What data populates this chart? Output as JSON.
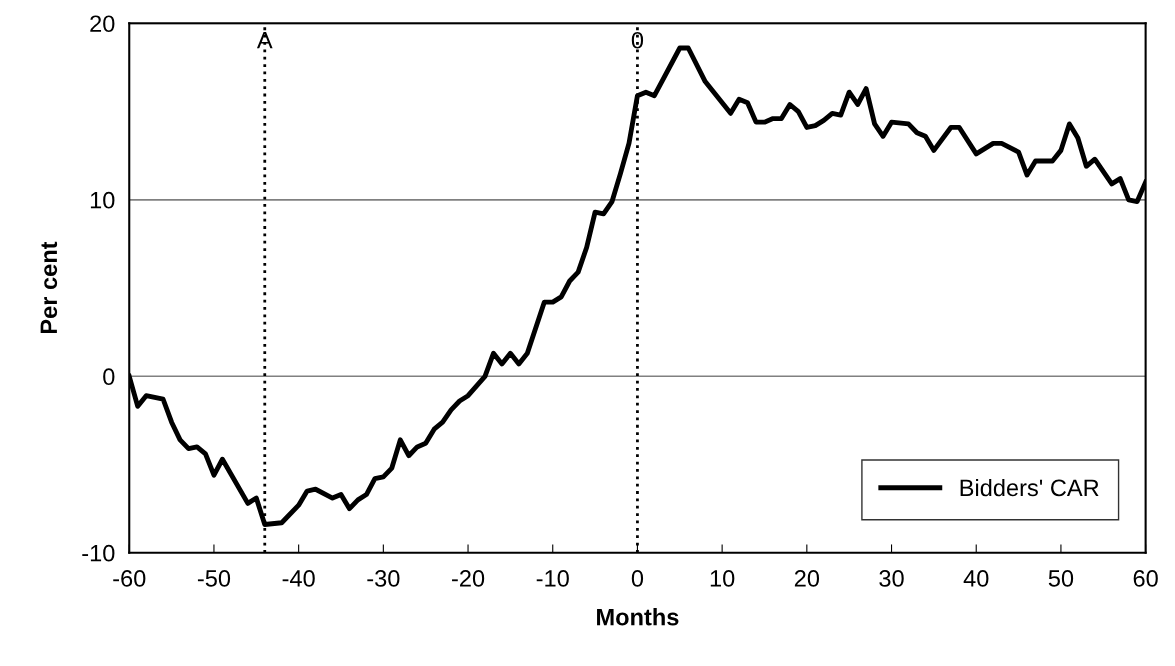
{
  "chart_data": {
    "type": "line",
    "xlabel": "Months",
    "ylabel": "Per cent",
    "xlim": [
      -60,
      60
    ],
    "xticks": [
      -60,
      -50,
      -40,
      -30,
      -20,
      -10,
      0,
      10,
      20,
      30,
      40,
      50,
      60
    ],
    "ylim": [
      -10,
      20
    ],
    "yticks": [
      -10,
      0,
      10,
      20
    ],
    "grid": "y",
    "legend": "lower right",
    "marker": "none",
    "line_style": "solid",
    "series": [
      {
        "name": "Bidders' CAR",
        "color": "#000000",
        "x": [
          -60,
          -59,
          -58,
          -56,
          -55,
          -54,
          -53,
          -52,
          -51,
          -50,
          -49,
          -46,
          -45,
          -44,
          -42,
          -40,
          -39,
          -38,
          -36,
          -35,
          -34,
          -33,
          -32,
          -31,
          -30,
          -29,
          -28,
          -27,
          -26,
          -25,
          -24,
          -23,
          -22,
          -21,
          -20,
          -18,
          -17,
          -16,
          -15,
          -14,
          -13,
          -11,
          -10,
          -9,
          -8,
          -7,
          -6,
          -5,
          -4,
          -3,
          -2,
          -1,
          0,
          1,
          2,
          5,
          6,
          8,
          11,
          12,
          13,
          14,
          15,
          16,
          17,
          18,
          19,
          20,
          21,
          22,
          23,
          24,
          25,
          26,
          27,
          28,
          29,
          30,
          32,
          33,
          34,
          35,
          37,
          38,
          40,
          42,
          43,
          45,
          46,
          47,
          49,
          50,
          51,
          52,
          53,
          54,
          56,
          57,
          58,
          59,
          60
        ],
        "values": [
          0,
          -1.7,
          -1.1,
          -1.3,
          -2.6,
          -3.6,
          -4.1,
          -4.0,
          -4.4,
          -5.6,
          -4.7,
          -7.2,
          -6.9,
          -8.4,
          -8.3,
          -7.3,
          -6.5,
          -6.4,
          -6.9,
          -6.7,
          -7.5,
          -7.0,
          -6.7,
          -5.8,
          -5.7,
          -5.2,
          -3.6,
          -4.5,
          -4.0,
          -3.8,
          -3.0,
          -2.6,
          -1.9,
          -1.4,
          -1.1,
          0,
          1.3,
          0.7,
          1.3,
          0.7,
          1.3,
          4.2,
          4.2,
          4.5,
          5.4,
          5.9,
          7.3,
          9.3,
          9.2,
          9.9,
          11.5,
          13.2,
          15.9,
          16.1,
          15.9,
          18.6,
          18.6,
          16.7,
          14.9,
          15.7,
          15.5,
          14.4,
          14.4,
          14.6,
          14.6,
          15.4,
          15.0,
          14.1,
          14.2,
          14.5,
          14.9,
          14.8,
          16.1,
          15.4,
          16.3,
          14.3,
          13.6,
          14.4,
          14.3,
          13.8,
          13.6,
          12.8,
          14.1,
          14.1,
          12.6,
          13.2,
          13.2,
          12.7,
          11.4,
          12.2,
          12.2,
          12.8,
          14.3,
          13.5,
          11.9,
          12.3,
          10.9,
          11.2,
          10.0,
          9.9,
          11.0
        ]
      }
    ],
    "ref_lines": [
      {
        "axis": "x",
        "value": -44,
        "label": "A",
        "color": "#000000",
        "line_style": "dotted"
      },
      {
        "axis": "x",
        "value": 0,
        "label": "0",
        "color": "#000000",
        "line_style": "dotted"
      }
    ]
  }
}
